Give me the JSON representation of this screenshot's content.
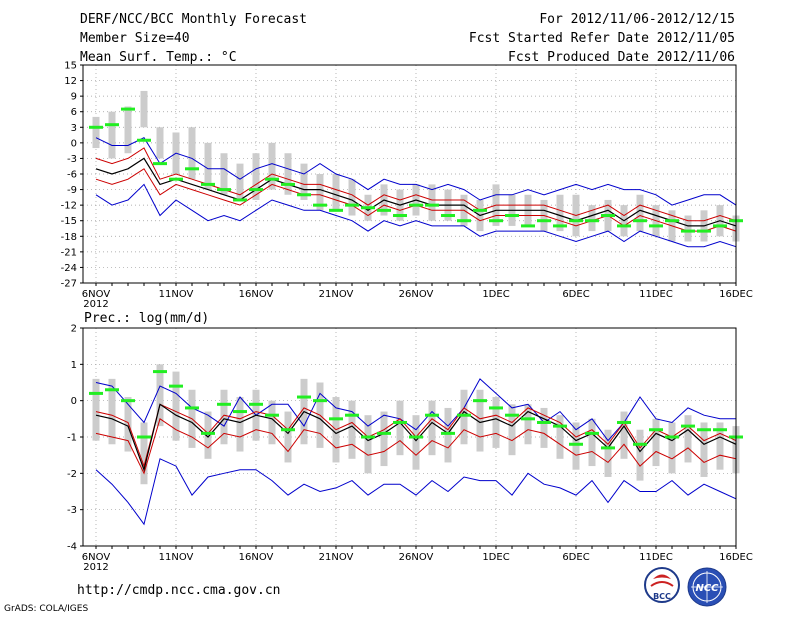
{
  "header": {
    "title": "DERF/NCC/BCC Monthly Forecast",
    "member": "Member Size=40",
    "variable": "Mean Surf. Temp.: °C",
    "period": "For 2012/11/06-2012/12/15",
    "refer": "Fcst Started Refer Date 2012/11/05",
    "produced": "Fcst Produced Date 2012/11/06"
  },
  "footer": {
    "url": "http://cmdp.ncc.cma.gov.cn",
    "credit": "GrADS: COLA/IGES"
  },
  "logos": [
    {
      "text": "BCC"
    },
    {
      "text": "NCC"
    }
  ],
  "colors": {
    "envelope": "#0000cc",
    "spread": "#cc0000",
    "mean": "#000000",
    "observed": "#22ee22",
    "box": "#cccccc"
  },
  "chart_data": [
    {
      "type": "line",
      "title": "Mean Surf. Temp.: °C",
      "ylim": [
        -27,
        15
      ],
      "yticks": [
        "15",
        "12",
        "9",
        "6",
        "3",
        "0",
        "-3",
        "-6",
        "-9",
        "-12",
        "-15",
        "-18",
        "-21",
        "-24",
        "-27"
      ],
      "xtick_labels": [
        "6NOV",
        "11NOV",
        "16NOV",
        "21NOV",
        "26NOV",
        "1DEC",
        "6DEC",
        "11DEC",
        "16DEC"
      ],
      "xtick_year": "2012",
      "categories_days": 41,
      "series": [
        {
          "name": "max",
          "values": [
            1,
            -0.5,
            -0.5,
            1,
            -4,
            -2,
            -3,
            -5,
            -5,
            -7,
            -5,
            -4,
            -5,
            -6,
            -4,
            -6,
            -7,
            -9,
            -7,
            -8,
            -8,
            -9,
            -8,
            -9,
            -11,
            -10,
            -10,
            -9,
            -10,
            -9,
            -8,
            -9,
            -8,
            -9,
            -9,
            -10,
            -12,
            -11,
            -10,
            -10,
            -12
          ]
        },
        {
          "name": "upper",
          "values": [
            -3,
            -4,
            -3,
            -1,
            -7,
            -6,
            -7,
            -8,
            -9,
            -10,
            -8,
            -6,
            -7,
            -8,
            -8,
            -9,
            -10,
            -12,
            -10,
            -11,
            -10,
            -11,
            -11,
            -11,
            -13,
            -12,
            -12,
            -12,
            -12,
            -13,
            -14,
            -13,
            -12,
            -14,
            -12,
            -13,
            -14,
            -15,
            -15,
            -14,
            -15
          ]
        },
        {
          "name": "mean",
          "values": [
            -5,
            -6,
            -5,
            -3,
            -8,
            -7,
            -8,
            -9,
            -10,
            -11,
            -9,
            -7,
            -8,
            -9,
            -9,
            -10,
            -11,
            -13,
            -11,
            -12,
            -11,
            -12,
            -12,
            -12,
            -14,
            -13,
            -13,
            -13,
            -13,
            -14,
            -15,
            -14,
            -13,
            -15,
            -13,
            -14,
            -15,
            -16,
            -16,
            -15,
            -16
          ]
        },
        {
          "name": "lower",
          "values": [
            -7,
            -8,
            -7,
            -5,
            -10,
            -8,
            -9,
            -10,
            -11,
            -12,
            -10,
            -8,
            -9,
            -10,
            -10,
            -11,
            -12,
            -14,
            -12,
            -13,
            -12,
            -13,
            -13,
            -13,
            -15,
            -14,
            -14,
            -14,
            -14,
            -15,
            -16,
            -15,
            -14,
            -16,
            -14,
            -15,
            -16,
            -17,
            -17,
            -16,
            -17
          ]
        },
        {
          "name": "min",
          "values": [
            -10,
            -12,
            -11,
            -8,
            -14,
            -11,
            -13,
            -15,
            -14,
            -15,
            -13,
            -11,
            -12,
            -13,
            -13,
            -14,
            -15,
            -17,
            -15,
            -16,
            -15,
            -16,
            -16,
            -16,
            -18,
            -17,
            -17,
            -17,
            -17,
            -18,
            -19,
            -18,
            -17,
            -19,
            -17,
            -18,
            -19,
            -20,
            -20,
            -19,
            -20
          ]
        },
        {
          "name": "observed",
          "values": [
            3,
            3.5,
            6.5,
            0.5,
            -4,
            -7,
            -5,
            -8,
            -9,
            -11,
            -9,
            -7,
            -8,
            -10,
            -12,
            -13,
            -12,
            -12.5,
            -13,
            -14,
            -12,
            -12,
            -14,
            -15,
            -13,
            -15,
            -14,
            -16,
            -15,
            -16,
            -15,
            -15,
            -14,
            -16,
            -15,
            -16,
            -15,
            -17,
            -17,
            -16,
            -15
          ]
        },
        {
          "name": "box_high",
          "values": [
            5,
            6,
            7,
            10,
            3,
            2,
            3,
            0,
            -2,
            -4,
            -2,
            0,
            -2,
            -4,
            -6,
            -6,
            -7,
            -10,
            -8,
            -9,
            -8,
            -8,
            -9,
            -10,
            -11,
            -8,
            -10,
            -10,
            -11,
            -10,
            -10,
            -12,
            -11,
            -12,
            -10,
            -12,
            -13,
            -14,
            -13,
            -12,
            -14
          ]
        },
        {
          "name": "box_low",
          "values": [
            -1,
            -3,
            -2,
            3,
            -3,
            -6,
            -7,
            -9,
            -10,
            -11,
            -11,
            -9,
            -10,
            -11,
            -13,
            -13,
            -14,
            -15,
            -14,
            -15,
            -14,
            -15,
            -15,
            -16,
            -17,
            -16,
            -16,
            -16,
            -17,
            -17,
            -18,
            -17,
            -17,
            -18,
            -17,
            -18,
            -19,
            -19,
            -19,
            -18,
            -19
          ]
        }
      ]
    },
    {
      "type": "line",
      "title": "Prec.: log(mm/d)",
      "ylim": [
        -4,
        2
      ],
      "yticks": [
        "2",
        "1",
        "0",
        "-1",
        "-2",
        "-3",
        "-4"
      ],
      "xtick_labels": [
        "6NOV",
        "11NOV",
        "16NOV",
        "21NOV",
        "26NOV",
        "1DEC",
        "6DEC",
        "11DEC",
        "16DEC"
      ],
      "xtick_year": "2012",
      "categories_days": 41,
      "series": [
        {
          "name": "max",
          "values": [
            0.5,
            0.4,
            -0.1,
            -0.6,
            0.4,
            0.2,
            -0.2,
            -0.4,
            -0.7,
            0.1,
            -0.4,
            -0.1,
            -0.1,
            -0.7,
            0.2,
            -0.2,
            -0.3,
            -0.7,
            -0.4,
            -0.5,
            -0.8,
            -0.3,
            -0.7,
            -0.2,
            0.6,
            0.2,
            -0.2,
            -0.1,
            -0.6,
            -0.3,
            -0.8,
            -0.5,
            -1.1,
            -0.6,
            0.1,
            -0.5,
            -0.6,
            -0.2,
            -0.4,
            -0.5,
            -0.5
          ]
        },
        {
          "name": "upper",
          "values": [
            -0.3,
            -0.4,
            -0.6,
            -1.8,
            -0.1,
            -0.3,
            -0.5,
            -0.9,
            -0.4,
            -0.5,
            -0.3,
            -0.4,
            -0.8,
            -0.2,
            -0.4,
            -0.8,
            -0.6,
            -1,
            -0.8,
            -0.5,
            -1,
            -0.5,
            -0.8,
            -0.2,
            -0.5,
            -0.4,
            -0.6,
            -0.2,
            -0.4,
            -0.6,
            -1,
            -0.8,
            -1.2,
            -0.6,
            -1.3,
            -0.8,
            -1,
            -0.7,
            -1.1,
            -0.9,
            -1.1
          ]
        },
        {
          "name": "mean",
          "values": [
            -0.4,
            -0.5,
            -0.7,
            -1.9,
            -0.1,
            -0.4,
            -0.6,
            -1,
            -0.5,
            -0.6,
            -0.4,
            -0.5,
            -0.9,
            -0.3,
            -0.5,
            -0.9,
            -0.7,
            -1.1,
            -0.9,
            -0.6,
            -1.1,
            -0.6,
            -0.9,
            -0.3,
            -0.6,
            -0.5,
            -0.7,
            -0.3,
            -0.5,
            -0.7,
            -1.1,
            -0.9,
            -1.3,
            -0.7,
            -1.4,
            -0.9,
            -1.1,
            -0.8,
            -1.2,
            -1,
            -1.2
          ]
        },
        {
          "name": "lower",
          "values": [
            -0.9,
            -1,
            -1.1,
            -2,
            -0.5,
            -0.8,
            -1,
            -1.3,
            -0.9,
            -1,
            -0.8,
            -0.9,
            -1.4,
            -0.8,
            -0.9,
            -1.3,
            -1.2,
            -1.5,
            -1.4,
            -1.1,
            -1.5,
            -1.1,
            -1.3,
            -0.8,
            -1,
            -0.9,
            -1.1,
            -0.8,
            -0.9,
            -1.2,
            -1.5,
            -1.4,
            -1.7,
            -1.2,
            -1.8,
            -1.4,
            -1.6,
            -1.3,
            -1.7,
            -1.5,
            -1.6
          ]
        },
        {
          "name": "min",
          "values": [
            -1.9,
            -2.3,
            -2.8,
            -3.4,
            -1.6,
            -1.8,
            -2.6,
            -2.1,
            -2,
            -1.9,
            -1.9,
            -2.2,
            -2.6,
            -2.3,
            -2.5,
            -2.4,
            -2.2,
            -2.6,
            -2.3,
            -2.3,
            -2.6,
            -2.2,
            -2.5,
            -2.1,
            -2.2,
            -2.2,
            -2.6,
            -2,
            -2.3,
            -2.4,
            -2.6,
            -2.2,
            -2.8,
            -2.2,
            -2.5,
            -2.5,
            -2.2,
            -2.6,
            -2.3,
            -2.5,
            -2.7
          ]
        },
        {
          "name": "observed",
          "values": [
            0.2,
            0.3,
            0,
            -1,
            0.8,
            0.4,
            -0.2,
            -0.9,
            -0.1,
            -0.3,
            -0.1,
            -0.4,
            -0.8,
            0.1,
            0,
            -0.5,
            -0.4,
            -1,
            -0.9,
            -0.6,
            -1,
            -0.4,
            -0.9,
            -0.4,
            0,
            -0.2,
            -0.4,
            -0.5,
            -0.6,
            -0.7,
            -1.2,
            -0.9,
            -1.3,
            -0.6,
            -1.2,
            -0.8,
            -1,
            -0.7,
            -0.8,
            -0.8,
            -1
          ]
        },
        {
          "name": "box_high",
          "values": [
            0.6,
            0.6,
            0.1,
            -0.6,
            1,
            0.8,
            0.3,
            -0.3,
            0.3,
            0.1,
            0.3,
            0,
            -0.3,
            0.6,
            0.5,
            0.1,
            0,
            -0.4,
            -0.3,
            0,
            -0.4,
            0,
            -0.2,
            0.3,
            0.3,
            0.1,
            -0.1,
            -0.1,
            -0.2,
            -0.4,
            -0.6,
            -0.5,
            -0.8,
            -0.3,
            -0.8,
            -0.5,
            -0.6,
            -0.4,
            -0.6,
            -0.6,
            -0.7
          ]
        },
        {
          "name": "box_low",
          "values": [
            -1.1,
            -1.2,
            -1.4,
            -2.3,
            -0.7,
            -1.1,
            -1.3,
            -1.6,
            -1.2,
            -1.4,
            -1.1,
            -1.2,
            -1.7,
            -1.2,
            -1.3,
            -1.7,
            -1.6,
            -2,
            -1.8,
            -1.5,
            -1.9,
            -1.5,
            -1.7,
            -1.2,
            -1.4,
            -1.3,
            -1.5,
            -1.2,
            -1.3,
            -1.6,
            -1.9,
            -1.8,
            -2.1,
            -1.6,
            -2.2,
            -1.8,
            -2,
            -1.7,
            -2.1,
            -1.9,
            -2
          ]
        }
      ]
    }
  ]
}
